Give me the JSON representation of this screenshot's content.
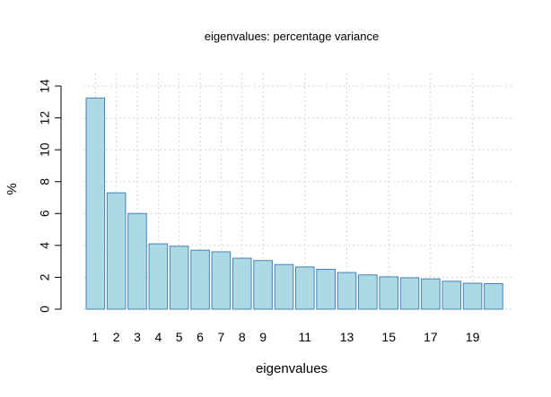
{
  "chart_data": {
    "type": "bar",
    "title": "eigenvalues: percentage variance",
    "xlabel": "eigenvalues",
    "ylabel": "%",
    "categories": [
      "1",
      "2",
      "3",
      "4",
      "5",
      "6",
      "7",
      "8",
      "9",
      "10",
      "11",
      "12",
      "13",
      "14",
      "15",
      "16",
      "17",
      "18",
      "19",
      "20"
    ],
    "x_tick_labels": [
      "1",
      "2",
      "3",
      "4",
      "5",
      "6",
      "7",
      "8",
      "9",
      "11",
      "13",
      "15",
      "17",
      "19"
    ],
    "values": [
      13.25,
      7.3,
      6.0,
      4.1,
      3.95,
      3.7,
      3.6,
      3.2,
      3.05,
      2.8,
      2.65,
      2.5,
      2.3,
      2.15,
      2.03,
      1.97,
      1.9,
      1.75,
      1.63,
      1.6
    ],
    "y_ticks": [
      0,
      2,
      4,
      6,
      8,
      10,
      12,
      14
    ],
    "ylim": [
      0,
      14
    ],
    "grid": true,
    "colors": {
      "bar_fill": "#ADD8E6",
      "bar_stroke": "#4682B4",
      "grid": "#d3d3d3",
      "axis": "#000000"
    }
  }
}
